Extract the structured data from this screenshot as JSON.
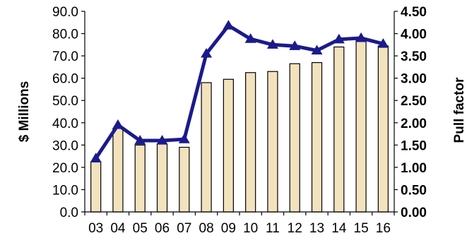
{
  "chart_data": {
    "type": "bar+line",
    "title": "",
    "categories": [
      "03",
      "04",
      "05",
      "06",
      "07",
      "08",
      "09",
      "10",
      "11",
      "12",
      "13",
      "14",
      "15",
      "16"
    ],
    "ylabel": "$ Millions",
    "y2label": "Pull factor",
    "ylim": [
      0,
      90
    ],
    "y2lim": [
      0,
      4.5
    ],
    "y_ticks": [
      "0.0",
      "10.0",
      "20.0",
      "30.0",
      "40.0",
      "50.0",
      "60.0",
      "70.0",
      "80.0",
      "90.0"
    ],
    "y2_ticks": [
      "0.00",
      "0.50",
      "1.00",
      "1.50",
      "2.00",
      "2.50",
      "3.00",
      "3.50",
      "4.00",
      "4.50"
    ],
    "grid": false,
    "legend": "none",
    "series": [
      {
        "kind": "bar",
        "axis": "left",
        "values": [
          22.5,
          37.5,
          30.0,
          30.5,
          29.0,
          58.0,
          59.5,
          62.5,
          63.0,
          66.5,
          67.0,
          74.0,
          77.0,
          74.5
        ],
        "color": "#f3e2be"
      },
      {
        "kind": "line",
        "axis": "right",
        "values": [
          1.2,
          1.95,
          1.6,
          1.6,
          1.63,
          3.55,
          4.18,
          3.88,
          3.75,
          3.72,
          3.62,
          3.87,
          3.9,
          3.77
        ],
        "color": "#1b1a8c"
      }
    ]
  }
}
